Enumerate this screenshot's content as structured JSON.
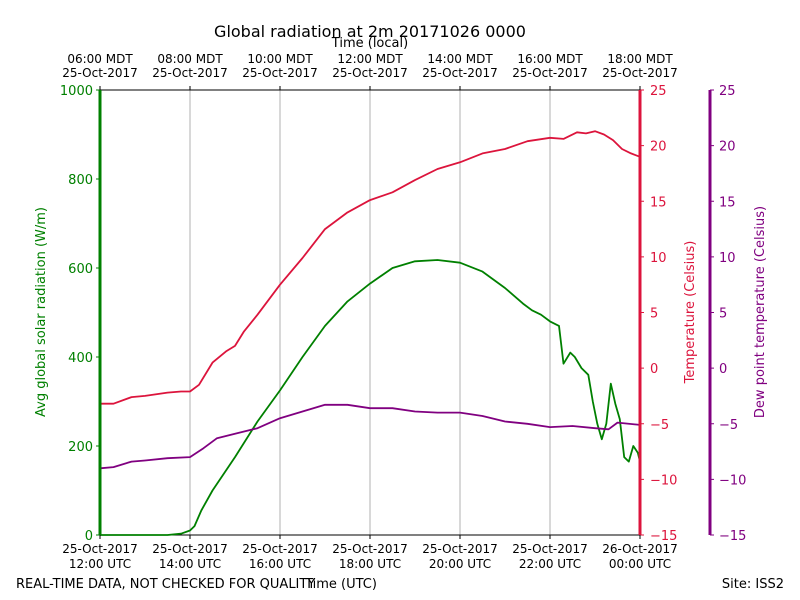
{
  "chart_data": {
    "type": "line",
    "title": "Global radiation at 2m 20171026 0000",
    "top_axis_label": "Time (local)",
    "top_ticks": [
      {
        "hour": 12,
        "line1": "06:00 MDT",
        "line2": "25-Oct-2017"
      },
      {
        "hour": 14,
        "line1": "08:00 MDT",
        "line2": "25-Oct-2017"
      },
      {
        "hour": 16,
        "line1": "10:00 MDT",
        "line2": "25-Oct-2017"
      },
      {
        "hour": 18,
        "line1": "12:00 MDT",
        "line2": "25-Oct-2017"
      },
      {
        "hour": 20,
        "line1": "14:00 MDT",
        "line2": "25-Oct-2017"
      },
      {
        "hour": 22,
        "line1": "16:00 MDT",
        "line2": "25-Oct-2017"
      },
      {
        "hour": 24,
        "line1": "18:00 MDT",
        "line2": "25-Oct-2017"
      }
    ],
    "xlabel": "Time (UTC)",
    "bottom_ticks": [
      {
        "hour": 12,
        "line1": "25-Oct-2017",
        "line2": "12:00 UTC"
      },
      {
        "hour": 14,
        "line1": "25-Oct-2017",
        "line2": "14:00 UTC"
      },
      {
        "hour": 16,
        "line1": "25-Oct-2017",
        "line2": "16:00 UTC"
      },
      {
        "hour": 18,
        "line1": "25-Oct-2017",
        "line2": "18:00 UTC"
      },
      {
        "hour": 20,
        "line1": "25-Oct-2017",
        "line2": "20:00 UTC"
      },
      {
        "hour": 22,
        "line1": "25-Oct-2017",
        "line2": "22:00 UTC"
      },
      {
        "hour": 24,
        "line1": "26-Oct-2017",
        "line2": "00:00 UTC"
      }
    ],
    "xlim": [
      12,
      24
    ],
    "grid_hours": [
      14,
      16,
      18,
      20,
      22
    ],
    "axes": {
      "radiation": {
        "label": "Avg global solar radiation (W/m)",
        "ylim": [
          0,
          1000
        ],
        "ticks": [
          0,
          200,
          400,
          600,
          800,
          1000
        ],
        "tick_labels": [
          "0",
          "200",
          "400",
          "600",
          "800",
          "1000"
        ],
        "color": "#008000"
      },
      "temperature": {
        "label": "Temperature (Celsius)",
        "ylim": [
          -15,
          25
        ],
        "ticks": [
          -15,
          -10,
          -5,
          0,
          5,
          10,
          15,
          20,
          25
        ],
        "tick_labels": [
          "−15",
          "−10",
          "−5",
          "0",
          "5",
          "10",
          "15",
          "20",
          "25"
        ],
        "color": "#dc143c"
      },
      "dewpoint": {
        "label": "Dew point temperature (Celsius)",
        "ylim": [
          -15,
          25
        ],
        "ticks": [
          -15,
          -10,
          -5,
          0,
          5,
          10,
          15,
          20,
          25
        ],
        "tick_labels": [
          "−15",
          "−10",
          "−5",
          "0",
          "5",
          "10",
          "15",
          "20",
          "25"
        ],
        "color": "#800080"
      }
    },
    "series": [
      {
        "name": "Avg global solar radiation",
        "axis": "radiation",
        "color": "#008000",
        "x": [
          12.0,
          12.5,
          13.0,
          13.5,
          13.8,
          14.0,
          14.1,
          14.25,
          14.5,
          15.0,
          15.5,
          16.0,
          16.5,
          17.0,
          17.5,
          18.0,
          18.5,
          19.0,
          19.5,
          20.0,
          20.5,
          21.0,
          21.4,
          21.6,
          21.8,
          22.0,
          22.2,
          22.3,
          22.45,
          22.55,
          22.7,
          22.85,
          22.95,
          23.05,
          23.15,
          23.25,
          23.35,
          23.45,
          23.55,
          23.65,
          23.75,
          23.85,
          23.95,
          24.0
        ],
        "y": [
          0,
          0,
          0,
          0,
          3,
          10,
          20,
          55,
          100,
          175,
          255,
          325,
          400,
          470,
          525,
          565,
          600,
          615,
          618,
          612,
          592,
          555,
          520,
          505,
          495,
          480,
          470,
          385,
          410,
          400,
          375,
          360,
          300,
          250,
          215,
          250,
          340,
          295,
          260,
          175,
          165,
          200,
          185,
          165
        ]
      },
      {
        "name": "Temperature",
        "axis": "temperature",
        "color": "#dc143c",
        "x": [
          12.0,
          12.3,
          12.7,
          13.0,
          13.5,
          13.8,
          14.0,
          14.2,
          14.5,
          14.8,
          15.0,
          15.2,
          15.5,
          16.0,
          16.5,
          17.0,
          17.5,
          18.0,
          18.5,
          19.0,
          19.5,
          20.0,
          20.5,
          21.0,
          21.5,
          22.0,
          22.3,
          22.6,
          22.8,
          23.0,
          23.2,
          23.4,
          23.6,
          23.8,
          24.0
        ],
        "y": [
          -3.2,
          -3.2,
          -2.6,
          -2.5,
          -2.2,
          -2.1,
          -2.1,
          -1.5,
          0.5,
          1.5,
          2.0,
          3.3,
          4.8,
          7.5,
          9.9,
          12.5,
          14.0,
          15.1,
          15.8,
          16.9,
          17.9,
          18.5,
          19.3,
          19.7,
          20.4,
          20.7,
          20.6,
          21.2,
          21.1,
          21.3,
          21.0,
          20.5,
          19.7,
          19.3,
          19.0
        ]
      },
      {
        "name": "Dew point temperature",
        "axis": "dewpoint",
        "color": "#800080",
        "x": [
          12.0,
          12.3,
          12.7,
          13.0,
          13.5,
          14.0,
          14.3,
          14.6,
          15.0,
          15.5,
          16.0,
          16.5,
          17.0,
          17.5,
          18.0,
          18.5,
          19.0,
          19.5,
          20.0,
          20.5,
          21.0,
          21.5,
          22.0,
          22.5,
          23.0,
          23.3,
          23.5,
          24.0
        ],
        "y": [
          -9.0,
          -8.9,
          -8.4,
          -8.3,
          -8.1,
          -8.0,
          -7.2,
          -6.3,
          -5.9,
          -5.4,
          -4.5,
          -3.9,
          -3.3,
          -3.3,
          -3.6,
          -3.6,
          -3.9,
          -4.0,
          -4.0,
          -4.3,
          -4.8,
          -5.0,
          -5.3,
          -5.2,
          -5.4,
          -5.5,
          -4.9,
          -5.1
        ]
      }
    ],
    "footer_left": "REAL-TIME DATA, NOT CHECKED FOR QUALITY",
    "footer_right": "Site: ISS2"
  }
}
